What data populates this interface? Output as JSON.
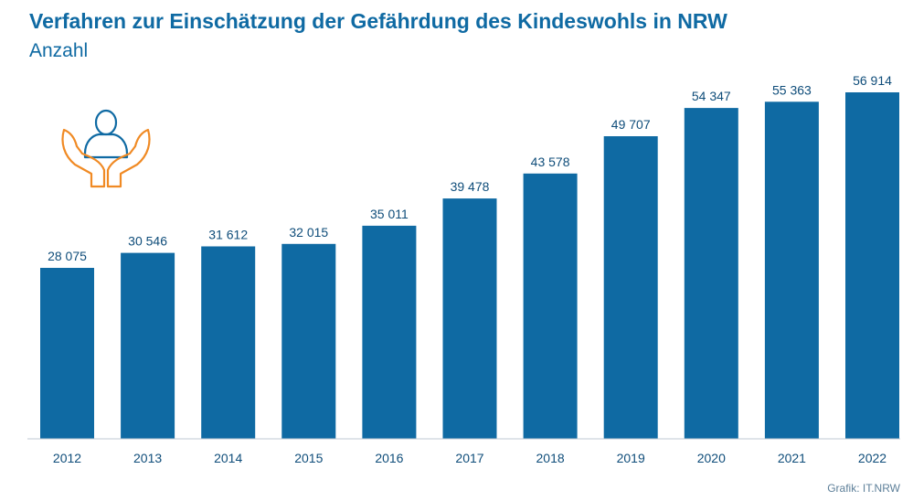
{
  "header": {
    "title": "Verfahren zur Einschätzung der Gefährdung des Kindeswohls in NRW",
    "subtitle": "Anzahl"
  },
  "source": "Grafik: IT.NRW",
  "icon": {
    "name": "child-protection-icon",
    "person_color": "#0f6aa3",
    "hands_color": "#f08a24"
  },
  "colors": {
    "bar": "#0f6aa3",
    "text": "#0f4d7a",
    "baseline": "#bfc9d3"
  },
  "chart_data": {
    "type": "bar",
    "title": "Verfahren zur Einschätzung der Gefährdung des Kindeswohls in NRW",
    "subtitle": "Anzahl",
    "categories": [
      "2012",
      "2013",
      "2014",
      "2015",
      "2016",
      "2017",
      "2018",
      "2019",
      "2020",
      "2021",
      "2022"
    ],
    "values": [
      28075,
      30546,
      31612,
      32015,
      35011,
      39478,
      43578,
      49707,
      54347,
      55363,
      56914
    ],
    "value_labels": [
      "28 075",
      "30 546",
      "31 612",
      "32 015",
      "35 011",
      "39 478",
      "43 578",
      "49 707",
      "54 347",
      "55 363",
      "56 914"
    ],
    "ylim": [
      0,
      56914
    ],
    "grid": false,
    "legend": "none"
  }
}
